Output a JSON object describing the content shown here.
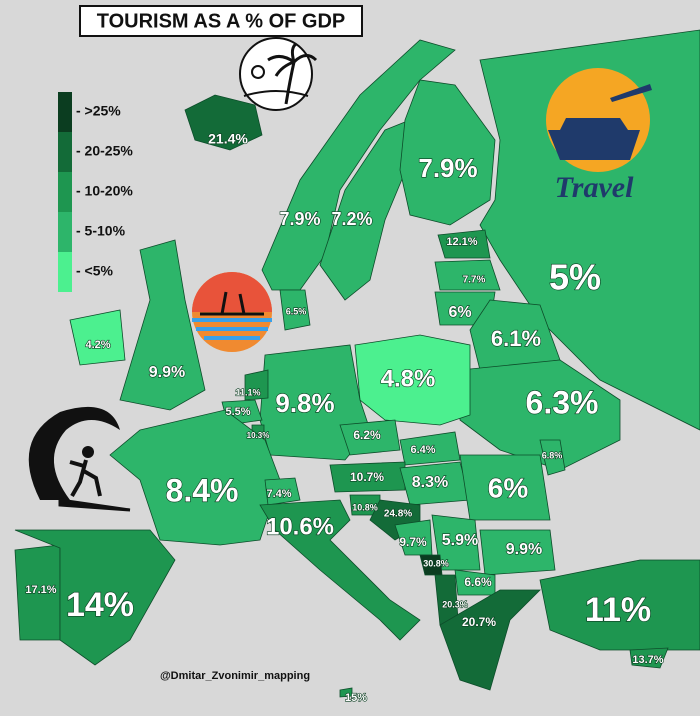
{
  "title": "TOURISM AS A % OF GDP",
  "legend": [
    {
      "label": "- >25%",
      "color": "#0b3d20"
    },
    {
      "label": "- 20-25%",
      "color": "#136b38"
    },
    {
      "label": "- 10-20%",
      "color": "#1e9650"
    },
    {
      "label": "- 5-10%",
      "color": "#2db56a"
    },
    {
      "label": "- <5%",
      "color": "#4cf08f"
    }
  ],
  "regions": [
    {
      "label": "21.4%",
      "color": "#136b38"
    },
    {
      "label": "7.9%",
      "color": "#2db56a"
    },
    {
      "label": "7.2%",
      "color": "#2db56a"
    },
    {
      "label": "7.9%",
      "color": "#2db56a"
    },
    {
      "label": "5%",
      "color": "#2db56a"
    },
    {
      "label": "12.1%",
      "color": "#1e9650"
    },
    {
      "label": "7.7%",
      "color": "#2db56a"
    },
    {
      "label": "6%",
      "color": "#2db56a"
    },
    {
      "label": "6.1%",
      "color": "#2db56a"
    },
    {
      "label": "6.3%",
      "color": "#2db56a"
    },
    {
      "label": "4.8%",
      "color": "#4cf08f"
    },
    {
      "label": "9.8%",
      "color": "#2db56a"
    },
    {
      "label": "6.5%",
      "color": "#2db56a"
    },
    {
      "label": "11.1%",
      "color": "#1e9650"
    },
    {
      "label": "5.5%",
      "color": "#2db56a"
    },
    {
      "label": "10.3%",
      "color": "#1e9650"
    },
    {
      "label": "8.4%",
      "color": "#2db56a"
    },
    {
      "label": "7.4%",
      "color": "#2db56a"
    },
    {
      "label": "9.9%",
      "color": "#2db56a"
    },
    {
      "label": "4.2%",
      "color": "#4cf08f"
    },
    {
      "label": "6.2%",
      "color": "#2db56a"
    },
    {
      "label": "6.4%",
      "color": "#2db56a"
    },
    {
      "label": "10.7%",
      "color": "#1e9650"
    },
    {
      "label": "8.3%",
      "color": "#2db56a"
    },
    {
      "label": "6%",
      "color": "#2db56a"
    },
    {
      "label": "6.8%",
      "color": "#2db56a"
    },
    {
      "label": "10.8%",
      "color": "#1e9650"
    },
    {
      "label": "24.8%",
      "color": "#136b38"
    },
    {
      "label": "9.7%",
      "color": "#2db56a"
    },
    {
      "label": "5.9%",
      "color": "#2db56a"
    },
    {
      "label": "30.8%",
      "color": "#0b3d20"
    },
    {
      "label": "9.9%",
      "color": "#2db56a"
    },
    {
      "label": "6.6%",
      "color": "#2db56a"
    },
    {
      "label": "20.3%",
      "color": "#136b38"
    },
    {
      "label": "20.7%",
      "color": "#136b38"
    },
    {
      "label": "10.6%",
      "color": "#1e9650"
    },
    {
      "label": "17.1%",
      "color": "#1e9650"
    },
    {
      "label": "14%",
      "color": "#1e9650"
    },
    {
      "label": "11%",
      "color": "#1e9650"
    },
    {
      "label": "13.7%",
      "color": "#1e9650"
    },
    {
      "label": "15%",
      "color": "#1e9650"
    }
  ],
  "logo_text": "Travel",
  "credit": "@Dmitar_Zvonimir_mapping"
}
